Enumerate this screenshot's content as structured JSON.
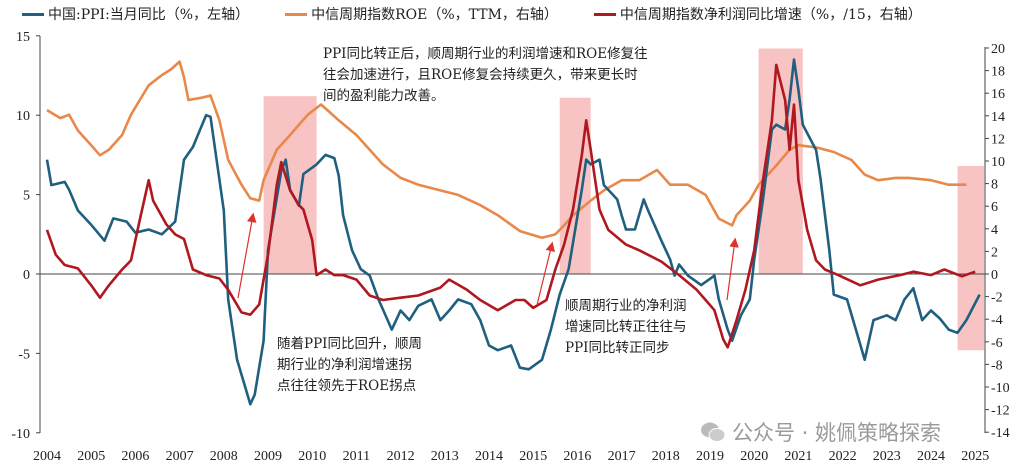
{
  "chart_data": {
    "type": "line",
    "title": "",
    "xlabel": "",
    "x_ticks": [
      "2004",
      "2005",
      "2006",
      "2007",
      "2008",
      "2009",
      "2010",
      "2011",
      "2012",
      "2013",
      "2014",
      "2015",
      "2016",
      "2017",
      "2018",
      "2019",
      "2020",
      "2021",
      "2022",
      "2023",
      "2024",
      "2025"
    ],
    "y_left": {
      "range": [
        -10,
        15
      ],
      "ticks": [
        "-10",
        "-5",
        "0",
        "5",
        "10",
        "15"
      ]
    },
    "y_right": {
      "range": [
        -14,
        20
      ],
      "ticks": [
        "-14",
        "-12",
        "-10",
        "-8",
        "-6",
        "-4",
        "-2",
        "0",
        "2",
        "4",
        "6",
        "8",
        "10",
        "12",
        "14",
        "16",
        "18",
        "20"
      ]
    },
    "legend_position": "top",
    "grid": false,
    "series": [
      {
        "name": "中国:PPI:当月同比（%，左轴）",
        "axis": "left",
        "color": "#1f5f7f",
        "points": [
          [
            2004.0,
            7.2
          ],
          [
            2004.1,
            5.6
          ],
          [
            2004.4,
            5.8
          ],
          [
            2004.5,
            5.3
          ],
          [
            2004.7,
            4.0
          ],
          [
            2005.0,
            3.1
          ],
          [
            2005.3,
            2.1
          ],
          [
            2005.5,
            3.5
          ],
          [
            2005.8,
            3.3
          ],
          [
            2006.0,
            2.6
          ],
          [
            2006.3,
            2.8
          ],
          [
            2006.6,
            2.5
          ],
          [
            2006.9,
            3.3
          ],
          [
            2007.1,
            7.2
          ],
          [
            2007.3,
            8.0
          ],
          [
            2007.6,
            10.0
          ],
          [
            2007.7,
            9.9
          ],
          [
            2007.8,
            7.9
          ],
          [
            2008.0,
            4.0
          ],
          [
            2008.1,
            -1.6
          ],
          [
            2008.3,
            -5.4
          ],
          [
            2008.6,
            -8.2
          ],
          [
            2008.7,
            -7.6
          ],
          [
            2008.9,
            -4.2
          ],
          [
            2009.0,
            1.5
          ],
          [
            2009.3,
            6.5
          ],
          [
            2009.4,
            7.2
          ],
          [
            2009.5,
            5.3
          ],
          [
            2009.7,
            4.3
          ],
          [
            2009.8,
            6.3
          ],
          [
            2010.1,
            6.9
          ],
          [
            2010.3,
            7.5
          ],
          [
            2010.5,
            7.3
          ],
          [
            2010.6,
            6.2
          ],
          [
            2010.7,
            3.7
          ],
          [
            2010.9,
            1.5
          ],
          [
            2011.1,
            0.3
          ],
          [
            2011.3,
            -0.1
          ],
          [
            2011.5,
            -1.6
          ],
          [
            2011.8,
            -3.5
          ],
          [
            2012.0,
            -2.3
          ],
          [
            2012.2,
            -2.9
          ],
          [
            2012.4,
            -2.0
          ],
          [
            2012.7,
            -1.6
          ],
          [
            2012.9,
            -2.9
          ],
          [
            2013.1,
            -2.3
          ],
          [
            2013.3,
            -1.6
          ],
          [
            2013.6,
            -1.9
          ],
          [
            2013.8,
            -2.9
          ],
          [
            2014.0,
            -4.5
          ],
          [
            2014.2,
            -4.8
          ],
          [
            2014.5,
            -4.5
          ],
          [
            2014.7,
            -5.9
          ],
          [
            2014.9,
            -6.0
          ],
          [
            2015.2,
            -5.4
          ],
          [
            2015.4,
            -3.5
          ],
          [
            2015.6,
            -1.3
          ],
          [
            2015.8,
            0.3
          ],
          [
            2016.1,
            5.3
          ],
          [
            2016.2,
            7.2
          ],
          [
            2016.3,
            6.9
          ],
          [
            2016.5,
            7.2
          ],
          [
            2016.6,
            5.6
          ],
          [
            2016.9,
            4.7
          ],
          [
            2017.0,
            3.7
          ],
          [
            2017.1,
            2.8
          ],
          [
            2017.3,
            2.8
          ],
          [
            2017.5,
            4.7
          ],
          [
            2017.6,
            4.0
          ],
          [
            2017.9,
            2.1
          ],
          [
            2018.1,
            0.9
          ],
          [
            2018.2,
            -0.1
          ],
          [
            2018.3,
            0.6
          ],
          [
            2018.5,
            -0.1
          ],
          [
            2018.8,
            -0.7
          ],
          [
            2019.0,
            -0.3
          ],
          [
            2019.1,
            -0.1
          ],
          [
            2019.2,
            -1.6
          ],
          [
            2019.4,
            -3.5
          ],
          [
            2019.5,
            -4.2
          ],
          [
            2019.7,
            -2.6
          ],
          [
            2019.9,
            -1.6
          ],
          [
            2020.0,
            0.9
          ],
          [
            2020.2,
            4.7
          ],
          [
            2020.4,
            9.1
          ],
          [
            2020.5,
            9.4
          ],
          [
            2020.7,
            9.1
          ],
          [
            2020.8,
            11.0
          ],
          [
            2020.9,
            13.5
          ],
          [
            2021.0,
            11.6
          ],
          [
            2021.1,
            9.4
          ],
          [
            2021.4,
            7.8
          ],
          [
            2021.5,
            6.0
          ],
          [
            2021.7,
            1.5
          ],
          [
            2021.8,
            -1.3
          ],
          [
            2022.1,
            -1.6
          ],
          [
            2022.3,
            -3.5
          ],
          [
            2022.5,
            -5.4
          ],
          [
            2022.7,
            -2.9
          ],
          [
            2023.0,
            -2.6
          ],
          [
            2023.2,
            -2.9
          ],
          [
            2023.4,
            -1.6
          ],
          [
            2023.6,
            -0.9
          ],
          [
            2023.8,
            -2.9
          ],
          [
            2024.0,
            -2.3
          ],
          [
            2024.2,
            -2.8
          ],
          [
            2024.4,
            -3.5
          ],
          [
            2024.6,
            -3.7
          ],
          [
            2024.8,
            -2.9
          ],
          [
            2025.1,
            -1.3
          ]
        ]
      },
      {
        "name": "中信周期指数ROE（%，TTM，右轴）",
        "axis": "right",
        "color": "#e8884a",
        "points": [
          [
            2004.0,
            14.5
          ],
          [
            2004.3,
            13.8
          ],
          [
            2004.5,
            14.1
          ],
          [
            2004.7,
            12.7
          ],
          [
            2005.0,
            11.4
          ],
          [
            2005.2,
            10.5
          ],
          [
            2005.4,
            11.0
          ],
          [
            2005.7,
            12.3
          ],
          [
            2005.9,
            14.1
          ],
          [
            2006.1,
            15.4
          ],
          [
            2006.3,
            16.7
          ],
          [
            2006.6,
            17.6
          ],
          [
            2006.8,
            18.1
          ],
          [
            2007.0,
            18.8
          ],
          [
            2007.1,
            17.4
          ],
          [
            2007.2,
            15.4
          ],
          [
            2007.5,
            15.6
          ],
          [
            2007.7,
            15.8
          ],
          [
            2007.9,
            13.6
          ],
          [
            2008.1,
            10.1
          ],
          [
            2008.4,
            7.9
          ],
          [
            2008.6,
            6.7
          ],
          [
            2008.8,
            6.5
          ],
          [
            2008.9,
            8.3
          ],
          [
            2009.2,
            11.0
          ],
          [
            2009.5,
            12.3
          ],
          [
            2009.7,
            13.2
          ],
          [
            2009.9,
            14.1
          ],
          [
            2010.2,
            15.0
          ],
          [
            2010.4,
            14.3
          ],
          [
            2010.6,
            13.6
          ],
          [
            2011.0,
            12.3
          ],
          [
            2011.3,
            11.0
          ],
          [
            2011.6,
            9.7
          ],
          [
            2012.0,
            8.5
          ],
          [
            2012.4,
            7.9
          ],
          [
            2012.9,
            7.4
          ],
          [
            2013.3,
            7.0
          ],
          [
            2013.8,
            6.1
          ],
          [
            2014.2,
            5.2
          ],
          [
            2014.7,
            3.8
          ],
          [
            2015.2,
            3.2
          ],
          [
            2015.5,
            3.5
          ],
          [
            2015.7,
            4.3
          ],
          [
            2015.9,
            5.2
          ],
          [
            2016.3,
            6.5
          ],
          [
            2016.6,
            7.4
          ],
          [
            2017.0,
            8.3
          ],
          [
            2017.4,
            8.3
          ],
          [
            2017.8,
            9.2
          ],
          [
            2018.1,
            7.9
          ],
          [
            2018.5,
            7.9
          ],
          [
            2018.9,
            7.0
          ],
          [
            2019.2,
            4.9
          ],
          [
            2019.5,
            4.3
          ],
          [
            2019.6,
            5.2
          ],
          [
            2019.9,
            6.5
          ],
          [
            2020.1,
            7.9
          ],
          [
            2020.5,
            9.6
          ],
          [
            2020.8,
            11.0
          ],
          [
            2021.0,
            11.4
          ],
          [
            2021.4,
            11.2
          ],
          [
            2021.8,
            10.8
          ],
          [
            2022.2,
            10.1
          ],
          [
            2022.5,
            8.8
          ],
          [
            2022.8,
            8.3
          ],
          [
            2023.2,
            8.5
          ],
          [
            2023.5,
            8.5
          ],
          [
            2024.0,
            8.3
          ],
          [
            2024.4,
            7.9
          ],
          [
            2024.8,
            7.9
          ]
        ]
      },
      {
        "name": "中信周期指数净利润同比增速（%，/15，右轴）",
        "axis": "right",
        "color": "#b01820",
        "points": [
          [
            2004.0,
            3.9
          ],
          [
            2004.2,
            1.7
          ],
          [
            2004.4,
            0.8
          ],
          [
            2004.7,
            0.5
          ],
          [
            2005.0,
            -1.0
          ],
          [
            2005.2,
            -2.1
          ],
          [
            2005.4,
            -1.0
          ],
          [
            2005.7,
            0.4
          ],
          [
            2005.9,
            1.2
          ],
          [
            2006.1,
            4.8
          ],
          [
            2006.3,
            8.3
          ],
          [
            2006.4,
            6.5
          ],
          [
            2006.7,
            4.4
          ],
          [
            2006.9,
            3.5
          ],
          [
            2007.1,
            3.1
          ],
          [
            2007.3,
            0.4
          ],
          [
            2007.6,
            -0.1
          ],
          [
            2007.9,
            -0.4
          ],
          [
            2008.1,
            -1.4
          ],
          [
            2008.4,
            -3.4
          ],
          [
            2008.6,
            -3.6
          ],
          [
            2008.8,
            -2.7
          ],
          [
            2009.0,
            1.7
          ],
          [
            2009.2,
            7.9
          ],
          [
            2009.3,
            9.9
          ],
          [
            2009.5,
            7.4
          ],
          [
            2009.7,
            6.1
          ],
          [
            2009.8,
            5.7
          ],
          [
            2010.0,
            3.0
          ],
          [
            2010.1,
            -0.1
          ],
          [
            2010.3,
            0.4
          ],
          [
            2010.5,
            -0.1
          ],
          [
            2010.7,
            -0.1
          ],
          [
            2011.0,
            -0.5
          ],
          [
            2011.3,
            -1.9
          ],
          [
            2011.6,
            -2.3
          ],
          [
            2012.0,
            -2.1
          ],
          [
            2012.4,
            -1.9
          ],
          [
            2012.9,
            -1.2
          ],
          [
            2013.1,
            -0.5
          ],
          [
            2013.5,
            -1.4
          ],
          [
            2013.8,
            -2.3
          ],
          [
            2014.2,
            -3.2
          ],
          [
            2014.6,
            -2.3
          ],
          [
            2014.8,
            -2.3
          ],
          [
            2015.0,
            -3.0
          ],
          [
            2015.3,
            -2.3
          ],
          [
            2015.5,
            0.4
          ],
          [
            2015.7,
            2.6
          ],
          [
            2015.9,
            5.7
          ],
          [
            2016.1,
            10.5
          ],
          [
            2016.2,
            13.6
          ],
          [
            2016.3,
            11.0
          ],
          [
            2016.5,
            5.7
          ],
          [
            2016.7,
            3.9
          ],
          [
            2017.1,
            2.6
          ],
          [
            2017.4,
            2.1
          ],
          [
            2017.9,
            1.1
          ],
          [
            2018.3,
            -0.1
          ],
          [
            2018.7,
            -1.4
          ],
          [
            2018.9,
            -2.3
          ],
          [
            2019.1,
            -3.2
          ],
          [
            2019.3,
            -5.8
          ],
          [
            2019.4,
            -6.5
          ],
          [
            2019.6,
            -4.1
          ],
          [
            2019.8,
            -1.4
          ],
          [
            2020.0,
            2.1
          ],
          [
            2020.2,
            8.3
          ],
          [
            2020.4,
            13.6
          ],
          [
            2020.5,
            18.5
          ],
          [
            2020.7,
            15.4
          ],
          [
            2020.8,
            11.0
          ],
          [
            2020.9,
            15.0
          ],
          [
            2021.0,
            8.3
          ],
          [
            2021.2,
            3.9
          ],
          [
            2021.4,
            1.2
          ],
          [
            2021.6,
            0.4
          ],
          [
            2021.9,
            -0.1
          ],
          [
            2022.4,
            -1.0
          ],
          [
            2022.8,
            -0.5
          ],
          [
            2023.3,
            -0.1
          ],
          [
            2023.6,
            0.2
          ],
          [
            2024.0,
            -0.1
          ],
          [
            2024.3,
            0.4
          ],
          [
            2024.7,
            -0.2
          ],
          [
            2025.0,
            0.2
          ]
        ]
      }
    ],
    "highlight_periods": [
      {
        "x": [
          2008.9,
          2010.1
        ],
        "y_left": [
          0,
          11.2
        ]
      },
      {
        "x": [
          2015.6,
          2016.3
        ],
        "y_left": [
          0,
          11.1
        ]
      },
      {
        "x": [
          2020.1,
          2021.1
        ],
        "y_left": [
          0,
          14.2
        ]
      },
      {
        "x": [
          2024.6,
          2025.2
        ],
        "y_left": [
          -4.8,
          6.8
        ]
      }
    ],
    "highlight_color": "#f7b8b8",
    "annotations": [
      {
        "lines": [
          "PPI同比转正后，顺周期行业的利润增速和ROE修复往",
          "往会加速进行，且ROE修复会持续更久，带来更长时",
          "间的盈利能力改善。"
        ]
      },
      {
        "lines": [
          "随着PPI同比回升，顺周",
          "期行业的净利润增速拐",
          "点往往领先于ROE拐点"
        ]
      },
      {
        "lines": [
          "顺周期行业的净利润",
          "增速同比转正往往与",
          "PPI同比转正同步"
        ]
      }
    ],
    "arrows_color": "#e0302a"
  },
  "watermark": {
    "text": "公众号 · 姚佩策略探索",
    "icon": "wechat-icon"
  }
}
